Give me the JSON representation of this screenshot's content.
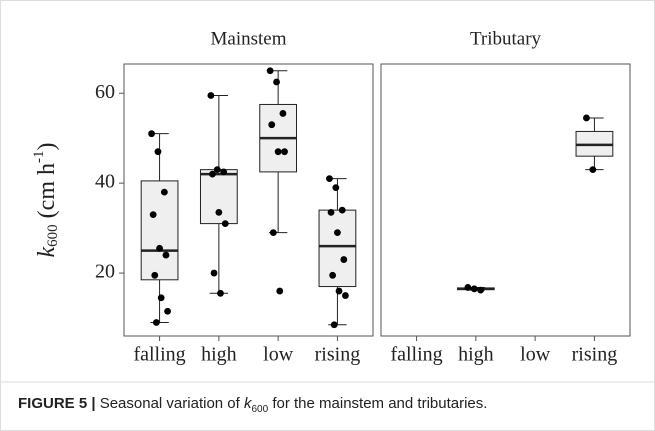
{
  "chart_data": [
    {
      "type": "box",
      "title": "Mainstem",
      "ylabel": [
        "k",
        "600",
        " (cm h",
        "-1",
        ")"
      ],
      "categories": [
        "falling",
        "high",
        "low",
        "rising"
      ],
      "ylim": [
        6,
        66.5
      ],
      "yticks": [
        20,
        40,
        60
      ],
      "boxes": [
        {
          "whislo": 9,
          "q1": 18.5,
          "med": 25,
          "q3": 40.5,
          "whishi": 51
        },
        {
          "whislo": 15.5,
          "q1": 31,
          "med": 42,
          "q3": 43,
          "whishi": 59.5
        },
        {
          "whislo": 29,
          "q1": 42.5,
          "med": 50,
          "q3": 57.5,
          "whishi": 65
        },
        {
          "whislo": 8.5,
          "q1": 17,
          "med": 26,
          "q3": 34,
          "whishi": 41
        }
      ],
      "points": [
        [
          51,
          47,
          38,
          33,
          25.5,
          24,
          19.5,
          14.5,
          11.5,
          9
        ],
        [
          59.5,
          43,
          42.5,
          42,
          33.5,
          31,
          20,
          15.5
        ],
        [
          65,
          62.5,
          55.5,
          53,
          47,
          47,
          29,
          16
        ],
        [
          41,
          39,
          34,
          33.5,
          29,
          23,
          19.5,
          16,
          15,
          8.5
        ]
      ],
      "color": "#efefef"
    },
    {
      "type": "box",
      "title": "Tributary",
      "categories": [
        "falling",
        "high",
        "low",
        "rising"
      ],
      "ylim": [
        6,
        66.5
      ],
      "boxes": [
        null,
        {
          "whislo": 16.2,
          "q1": 16.3,
          "med": 16.5,
          "q3": 16.7,
          "whishi": 16.8
        },
        null,
        {
          "whislo": 43,
          "q1": 46,
          "med": 48.5,
          "q3": 51.5,
          "whishi": 54.5
        }
      ],
      "points": [
        [],
        [
          16.8,
          16.5,
          16.2
        ],
        [],
        [
          54.5,
          43
        ]
      ],
      "color": "#efefef"
    }
  ],
  "caption": {
    "label": "FIGURE 5 |",
    "text": [
      " Seasonal variation of ",
      "k",
      "600",
      " for the mainstem and tributaries."
    ]
  }
}
